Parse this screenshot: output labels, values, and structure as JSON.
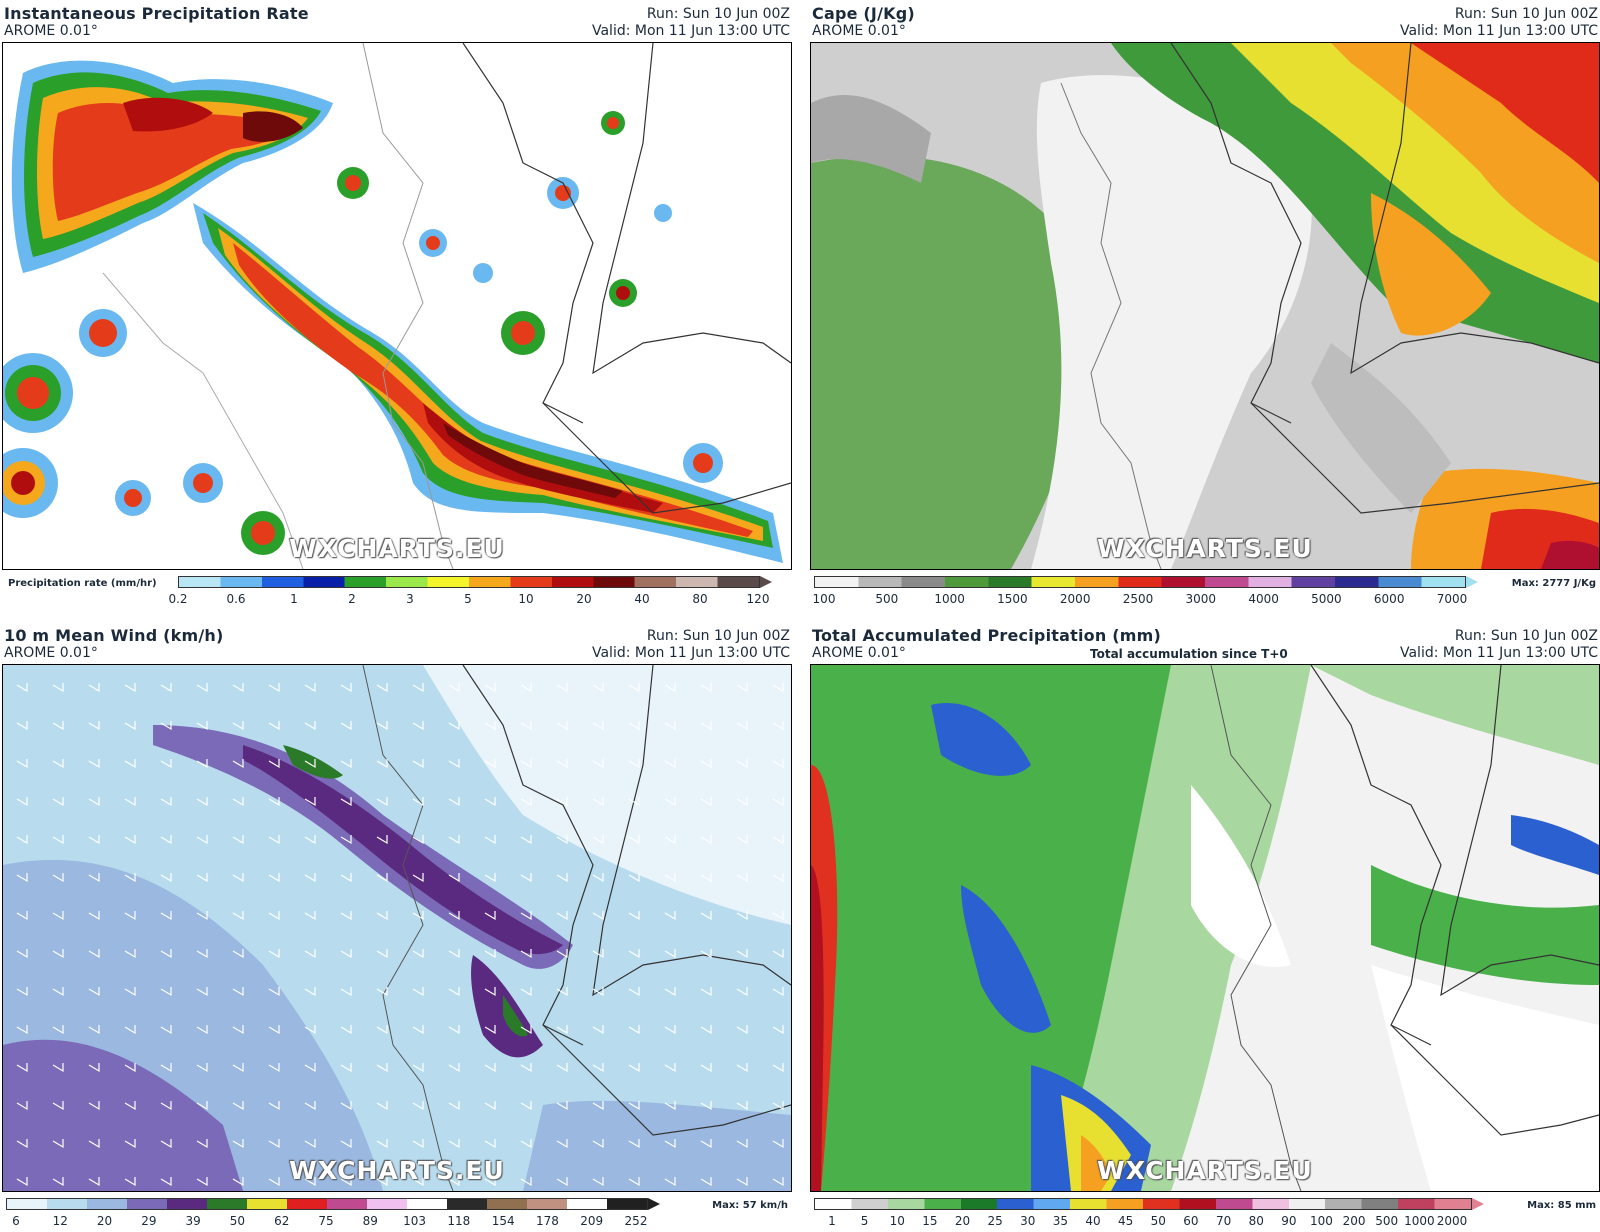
{
  "panels": [
    {
      "title": "Instantaneous Precipitation Rate",
      "model": "AROME 0.01°",
      "run": "Run: Sun 10 Jun 00Z",
      "valid": "Valid: Mon 11 Jun 13:00 UTC",
      "subtitle": "",
      "watermark": "WXCHARTS.EU",
      "colorbar": {
        "label": "Precipitation rate (mm/hr)",
        "max": "",
        "ticks": [
          "0.2",
          "0.6",
          "1",
          "2",
          "3",
          "5",
          "10",
          "20",
          "40",
          "80",
          "120"
        ],
        "colors": [
          "#b9e6f5",
          "#6ab8f0",
          "#1f5fe0",
          "#0a1fa8",
          "#2aa02a",
          "#9be84a",
          "#f4f42a",
          "#f5a81c",
          "#e43b1a",
          "#b00e0e",
          "#6e0a0a",
          "#a07060",
          "#ccb8b0",
          "#5a4a4a"
        ]
      }
    },
    {
      "title": "Cape (J/Kg)",
      "model": "AROME 0.01°",
      "run": "Run: Sun 10 Jun 00Z",
      "valid": "Valid: Mon 11 Jun 13:00 UTC",
      "subtitle": "",
      "watermark": "WXCHARTS.EU",
      "colorbar": {
        "label": "",
        "max": "Max: 2777 J/Kg",
        "ticks": [
          "100",
          "500",
          "1000",
          "1500",
          "2000",
          "2500",
          "3000",
          "4000",
          "5000",
          "6000",
          "7000"
        ],
        "colors": [
          "#f2f2f2",
          "#b8b8b8",
          "#8a8a8a",
          "#4e9a3a",
          "#2a7a2a",
          "#e8e830",
          "#f5a020",
          "#e02a1a",
          "#b01030",
          "#c04a90",
          "#e0b0e0",
          "#6040a0",
          "#2a2a90",
          "#4a8ad0",
          "#a0e0f0"
        ]
      }
    },
    {
      "title": "10 m Mean Wind (km/h)",
      "model": "AROME 0.01°",
      "run": "Run: Sun 10 Jun 00Z",
      "valid": "Valid: Mon 11 Jun 13:00 UTC",
      "subtitle": "",
      "watermark": "WXCHARTS.EU",
      "colorbar": {
        "label": "",
        "max": "Max: 57 km/h",
        "ticks": [
          "6",
          "12",
          "20",
          "29",
          "39",
          "50",
          "62",
          "75",
          "89",
          "103",
          "118",
          "154",
          "178",
          "209",
          "252"
        ],
        "colors": [
          "#e8f4fa",
          "#b8dcee",
          "#9ab8e0",
          "#7a6ab8",
          "#5a2a80",
          "#2a7a2a",
          "#e8e030",
          "#e02020",
          "#c04a90",
          "#f0c0f0",
          "#ffffff",
          "#2a2a2a",
          "#907050",
          "#c09080",
          "#ffffff",
          "#202020"
        ]
      }
    },
    {
      "title": "Total Accumulated Precipitation (mm)",
      "model": "AROME 0.01°",
      "run": "Run: Sun 10 Jun 00Z",
      "valid": "Valid: Mon 11 Jun 13:00 UTC",
      "subtitle": "Total accumulation since T+0",
      "watermark": "WXCHARTS.EU",
      "colorbar": {
        "label": "",
        "max": "Max: 85 mm",
        "ticks": [
          "1",
          "5",
          "10",
          "15",
          "20",
          "25",
          "30",
          "35",
          "40",
          "45",
          "50",
          "60",
          "70",
          "80",
          "90",
          "100",
          "200",
          "500",
          "1000",
          "2000"
        ],
        "colors": [
          "#ffffff",
          "#cfcfcf",
          "#a8d8a0",
          "#4ab04a",
          "#1a7a2a",
          "#2a60d0",
          "#60a8f0",
          "#e8e030",
          "#f5a020",
          "#e03020",
          "#b01020",
          "#c04a90",
          "#f0c0e0",
          "#f0f0f0",
          "#b0b0b0",
          "#808080",
          "#c04060",
          "#e08090"
        ]
      }
    }
  ]
}
